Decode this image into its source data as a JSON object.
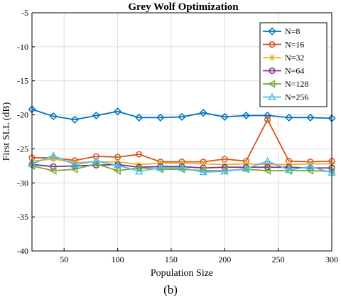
{
  "caption": "(b)",
  "chart_data": {
    "type": "line",
    "title": "Grey Wolf Optimization",
    "xlabel": "Population Size",
    "ylabel": "First SLL (dB)",
    "xlim": [
      20,
      300
    ],
    "ylim": [
      -40,
      -5
    ],
    "x_ticks": [
      50,
      100,
      150,
      200,
      250,
      300
    ],
    "y_ticks": [
      -40,
      -35,
      -30,
      -25,
      -20,
      -15,
      -10,
      -5
    ],
    "grid": true,
    "legend_position": "top-right",
    "x": [
      20,
      40,
      60,
      80,
      100,
      120,
      140,
      160,
      180,
      200,
      220,
      240,
      260,
      280,
      300
    ],
    "series": [
      {
        "name": "N=8",
        "color": "#0072BD",
        "marker": "diamond",
        "values": [
          -19.2,
          -20.2,
          -20.7,
          -20.1,
          -19.5,
          -20.4,
          -20.4,
          -20.3,
          -19.7,
          -20.3,
          -20.1,
          -20.1,
          -20.4,
          -20.4,
          -20.5
        ]
      },
      {
        "name": "N=16",
        "color": "#D95319",
        "marker": "circle",
        "values": [
          -26.3,
          -26.3,
          -26.7,
          -26.1,
          -26.2,
          -25.8,
          -26.9,
          -26.9,
          -26.9,
          -26.5,
          -26.8,
          -20.7,
          -26.8,
          -26.9,
          -26.8
        ]
      },
      {
        "name": "N=32",
        "color": "#EDB120",
        "marker": "star",
        "values": [
          -26.8,
          -26.5,
          -27.0,
          -26.9,
          -26.9,
          -27.3,
          -27.1,
          -27.1,
          -27.2,
          -27.3,
          -27.2,
          -27.3,
          -27.3,
          -27.2,
          -27.2
        ]
      },
      {
        "name": "N=64",
        "color": "#7E2F8E",
        "marker": "circle",
        "values": [
          -27.3,
          -27.6,
          -27.5,
          -27.4,
          -27.3,
          -27.7,
          -27.6,
          -27.6,
          -27.8,
          -27.7,
          -27.7,
          -27.7,
          -27.7,
          -27.8,
          -27.8
        ]
      },
      {
        "name": "N=128",
        "color": "#77AC30",
        "marker": "triangle-left",
        "values": [
          -27.5,
          -28.2,
          -28.0,
          -27.2,
          -28.2,
          -27.8,
          -28.0,
          -28.0,
          -28.2,
          -28.2,
          -28.0,
          -28.2,
          -28.2,
          -28.2,
          -28.3
        ]
      },
      {
        "name": "N=256",
        "color": "#4DBEEE",
        "marker": "triangle-up",
        "values": [
          -27.2,
          -26.0,
          -27.3,
          -26.8,
          -27.4,
          -28.3,
          -27.8,
          -27.8,
          -28.4,
          -28.3,
          -27.9,
          -26.8,
          -28.1,
          -27.6,
          -28.5
        ]
      }
    ]
  }
}
